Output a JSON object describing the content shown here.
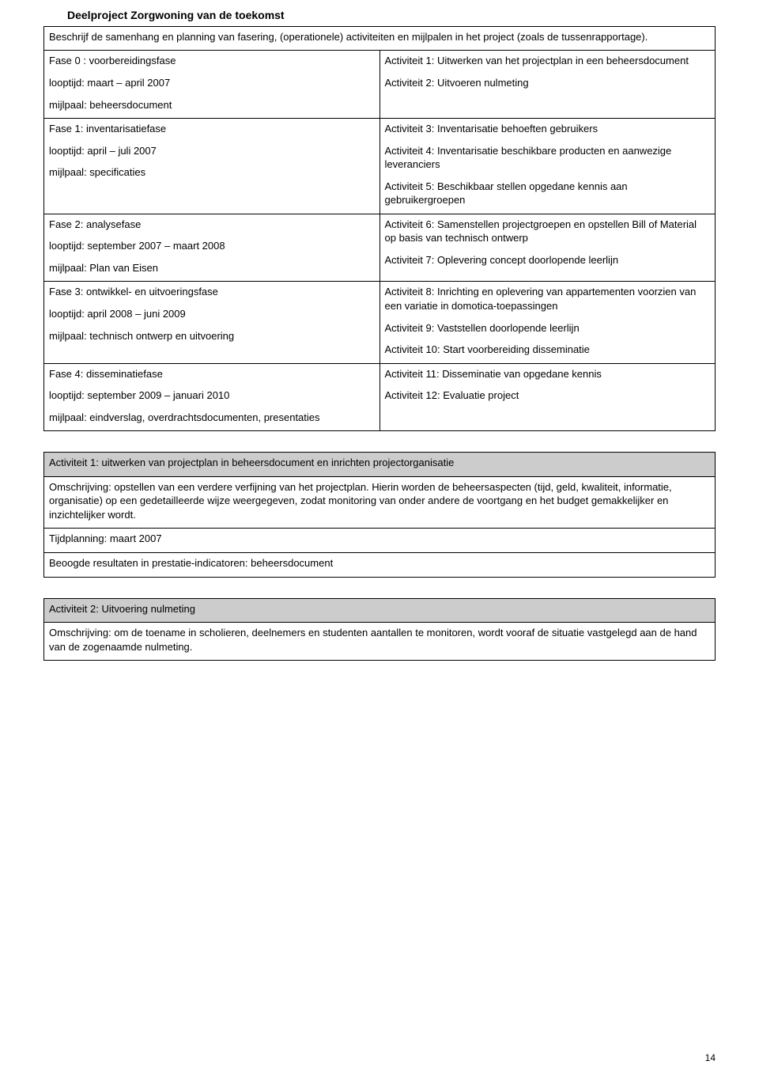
{
  "title": "Deelproject Zorgwoning van de toekomst",
  "intro": "Beschrijf de samenhang en planning van fasering, (operationele) activiteiten en mijlpalen in het project (zoals de tussenrapportage).",
  "rows": [
    {
      "left": [
        "Fase 0 : voorbereidingsfase",
        "looptijd: maart – april 2007",
        "mijlpaal: beheersdocument"
      ],
      "right": [
        "Activiteit 1: Uitwerken van het projectplan in een beheersdocument",
        "Activiteit 2: Uitvoeren nulmeting"
      ]
    },
    {
      "left": [
        "Fase 1: inventarisatiefase",
        "looptijd: april – juli 2007",
        "mijlpaal: specificaties"
      ],
      "right": [
        "Activiteit 3: Inventarisatie behoeften gebruikers",
        "Activiteit 4: Inventarisatie beschikbare producten en aanwezige leveranciers",
        "Activiteit 5: Beschikbaar stellen opgedane kennis aan gebruikergroepen"
      ]
    },
    {
      "left": [
        "Fase 2: analysefase",
        "looptijd: september 2007 – maart 2008",
        "mijlpaal: Plan van Eisen"
      ],
      "right": [
        "Activiteit 6: Samenstellen projectgroepen en opstellen Bill of Material op basis van technisch ontwerp",
        "Activiteit 7: Oplevering concept doorlopende leerlijn"
      ]
    },
    {
      "left": [
        "Fase 3: ontwikkel- en uitvoeringsfase",
        "looptijd: april 2008 – juni 2009",
        "mijlpaal: technisch ontwerp en uitvoering"
      ],
      "right": [
        "Activiteit 8: Inrichting en oplevering van appartementen voorzien van een variatie in domotica-toepassingen",
        "Activiteit 9: Vaststellen doorlopende leerlijn",
        "Activiteit 10: Start voorbereiding disseminatie"
      ]
    },
    {
      "left": [
        "Fase 4: disseminatiefase",
        "looptijd: september 2009 – januari 2010",
        "mijlpaal: eindverslag, overdrachtsdocumenten, presentaties"
      ],
      "right": [
        "Activiteit 11: Disseminatie van opgedane kennis",
        "Activiteit 12: Evaluatie project"
      ]
    }
  ],
  "activity1": {
    "header": "Activiteit 1: uitwerken van projectplan in beheersdocument en inrichten projectorganisatie",
    "desc": "Omschrijving: opstellen van een verdere verfijning van het projectplan. Hierin worden de beheersaspecten (tijd, geld, kwaliteit, informatie, organisatie) op een gedetailleerde wijze weergegeven, zodat monitoring van onder andere de voortgang en het budget gemakkelijker en inzichtelijker wordt.",
    "time": "Tijdplanning: maart 2007",
    "result": "Beoogde resultaten in prestatie-indicatoren: beheersdocument"
  },
  "activity2": {
    "header": "Activiteit 2: Uitvoering nulmeting",
    "desc": "Omschrijving: om de toename in scholieren, deelnemers en studenten aantallen te monitoren, wordt vooraf de situatie vastgelegd aan de hand van de zogenaamde nulmeting."
  },
  "pageNumber": "14"
}
